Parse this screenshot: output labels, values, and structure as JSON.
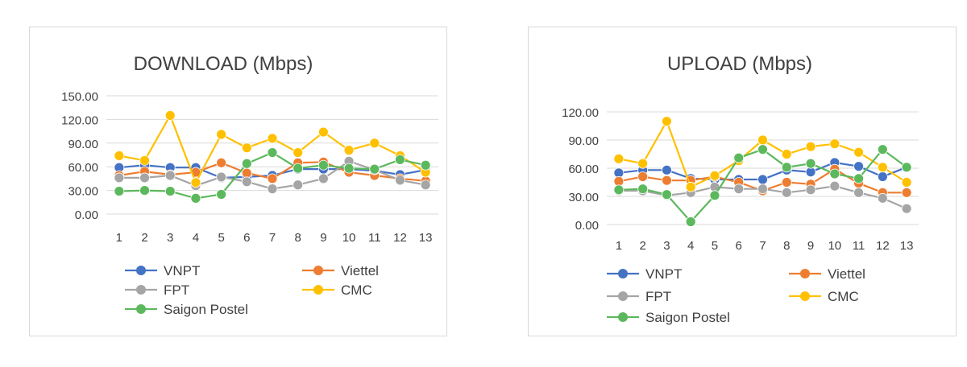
{
  "chart_data": [
    {
      "type": "line",
      "title": "DOWNLOAD (Mbps)",
      "xlabel": "",
      "ylabel": "",
      "ylim": [
        0,
        150
      ],
      "yticks": [
        "150.00",
        "120.00",
        "90.00",
        "60.00",
        "30.00",
        "0.00"
      ],
      "ytick_values": [
        150,
        120,
        90,
        60,
        30,
        0
      ],
      "x": [
        "1",
        "2",
        "3",
        "4",
        "5",
        "6",
        "7",
        "8",
        "9",
        "10",
        "11",
        "12",
        "13"
      ],
      "grid": true,
      "legend_position": "bottom",
      "series": [
        {
          "name": "VNPT",
          "color": "#4472c4",
          "values": [
            59,
            62,
            59,
            59,
            46,
            47,
            49,
            57,
            57,
            57,
            55,
            50,
            56
          ]
        },
        {
          "name": "Viettel",
          "color": "#ed7d31",
          "values": [
            49,
            54,
            50,
            53,
            65,
            52,
            45,
            65,
            66,
            53,
            49,
            45,
            42
          ]
        },
        {
          "name": "FPT",
          "color": "#a5a5a5",
          "values": [
            46,
            46,
            49,
            36,
            47,
            41,
            32,
            37,
            45,
            67,
            56,
            43,
            37
          ]
        },
        {
          "name": "CMC",
          "color": "#ffc000",
          "values": [
            74,
            68,
            125,
            40,
            101,
            84,
            96,
            78,
            104,
            81,
            90,
            74,
            53
          ]
        },
        {
          "name": "Saigon Postel",
          "color": "#5cb85c",
          "values": [
            29,
            30,
            29,
            20,
            25,
            64,
            78,
            58,
            62,
            58,
            57,
            69,
            62
          ]
        }
      ]
    },
    {
      "type": "line",
      "title": "UPLOAD (Mbps)",
      "xlabel": "",
      "ylabel": "",
      "ylim": [
        0,
        120
      ],
      "yticks": [
        "120.00",
        "90.00",
        "60.00",
        "30.00",
        "0.00"
      ],
      "ytick_values": [
        120,
        90,
        60,
        30,
        0
      ],
      "x": [
        "1",
        "2",
        "3",
        "4",
        "5",
        "6",
        "7",
        "8",
        "9",
        "10",
        "11",
        "12",
        "13"
      ],
      "grid": true,
      "legend_position": "bottom",
      "series": [
        {
          "name": "VNPT",
          "color": "#4472c4",
          "values": [
            55,
            58,
            58,
            49,
            48,
            48,
            48,
            58,
            56,
            66,
            62,
            51,
            61
          ]
        },
        {
          "name": "Viettel",
          "color": "#ed7d31",
          "values": [
            46,
            51,
            47,
            47,
            51,
            45,
            36,
            45,
            43,
            59,
            44,
            34,
            34
          ]
        },
        {
          "name": "FPT",
          "color": "#a5a5a5",
          "values": [
            36,
            36,
            31,
            34,
            40,
            38,
            38,
            34,
            37,
            41,
            34,
            28,
            17
          ]
        },
        {
          "name": "CMC",
          "color": "#ffc000",
          "values": [
            70,
            65,
            110,
            40,
            52,
            68,
            90,
            75,
            83,
            86,
            77,
            61,
            45
          ]
        },
        {
          "name": "Saigon Postel",
          "color": "#5cb85c",
          "values": [
            37,
            38,
            32,
            3,
            31,
            71,
            80,
            61,
            65,
            54,
            49,
            80,
            61
          ]
        }
      ]
    }
  ]
}
